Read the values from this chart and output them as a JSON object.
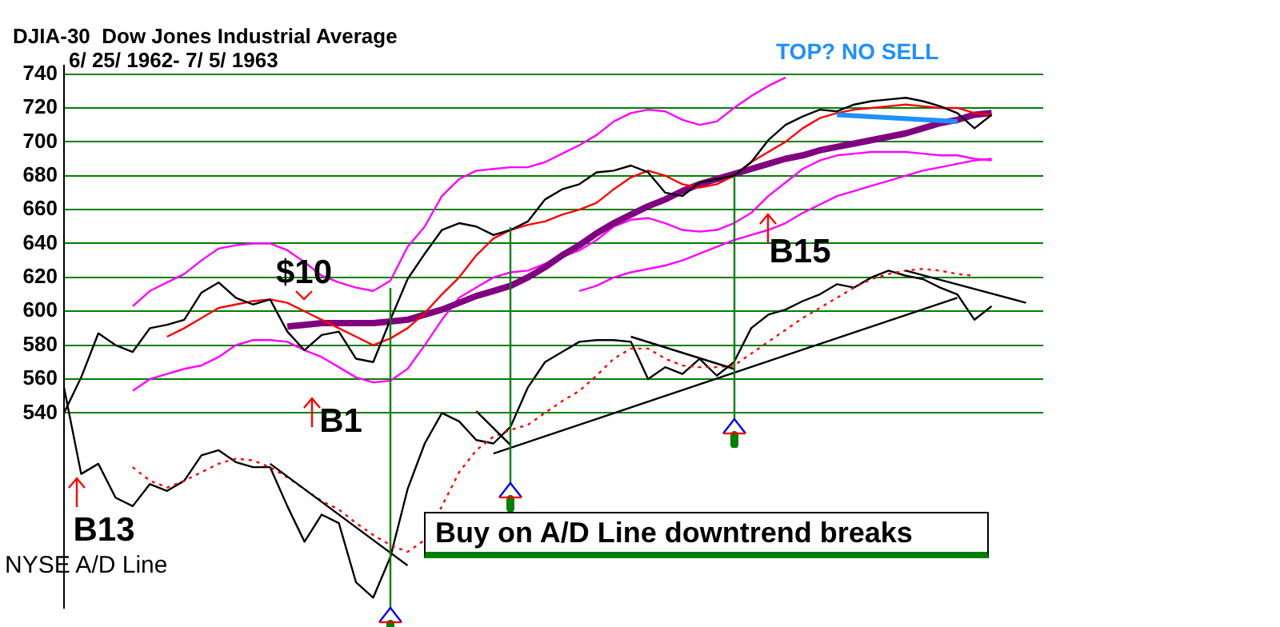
{
  "chart_data": {
    "type": "line",
    "title": "DJIA-30  Dow Jones Industrial Average",
    "subtitle": "6/ 25/ 1962- 7/ 5/ 1963",
    "categories": [
      null,
      null,
      null,
      null,
      null,
      null,
      null,
      null,
      null,
      null,
      null,
      null,
      null,
      null,
      null,
      null,
      null,
      null,
      null,
      null,
      null,
      null,
      null,
      null,
      null,
      null,
      null,
      null,
      null,
      null,
      null,
      null,
      null,
      null,
      null,
      null,
      null,
      null,
      null,
      null,
      null,
      null,
      null,
      null,
      null,
      null,
      null,
      null,
      null,
      null,
      null,
      null,
      null,
      null,
      null,
      null,
      null,
      null
    ],
    "series": [
      {
        "color": "#ff00ff",
        "values": [
          null,
          null,
          null,
          null,
          603,
          612,
          617,
          622,
          630,
          637,
          639,
          640,
          640,
          636,
          629,
          621,
          617,
          614,
          612,
          618,
          638,
          650,
          668,
          678,
          683,
          684,
          685,
          685,
          688,
          693,
          698,
          704,
          712,
          717,
          719,
          718,
          713,
          710,
          712,
          720,
          727,
          733,
          738,
          null,
          null,
          null,
          null,
          null,
          null,
          null,
          null,
          null,
          null,
          null,
          null,
          null,
          null,
          null
        ]
      },
      {
        "color": "#ff00ff",
        "values": [
          null,
          null,
          null,
          null,
          553,
          560,
          563,
          566,
          568,
          573,
          580,
          583,
          583,
          582,
          577,
          573,
          567,
          561,
          558,
          559,
          566,
          580,
          595,
          608,
          614,
          620,
          623,
          624,
          628,
          632,
          636,
          642,
          650,
          654,
          655,
          652,
          648,
          647,
          648,
          652,
          658,
          668,
          676,
          684,
          689,
          692,
          693,
          694,
          694,
          694,
          693,
          692,
          692,
          690,
          689,
          null,
          null,
          null
        ]
      },
      {
        "color": "#ff00ff",
        "values": [
          null,
          null,
          null,
          null,
          null,
          null,
          null,
          null,
          null,
          null,
          null,
          null,
          null,
          null,
          null,
          null,
          null,
          null,
          null,
          null,
          null,
          null,
          null,
          null,
          null,
          null,
          null,
          null,
          null,
          null,
          612,
          615,
          620,
          623,
          625,
          627,
          630,
          634,
          638,
          642,
          645,
          648,
          652,
          658,
          663,
          668,
          671,
          674,
          677,
          680,
          683,
          685,
          687,
          689,
          690,
          null,
          null,
          null
        ]
      },
      {
        "color": "#800080",
        "values": [
          null,
          null,
          null,
          null,
          null,
          null,
          null,
          null,
          null,
          null,
          null,
          null,
          null,
          591,
          592,
          593,
          593,
          593,
          593,
          594,
          595,
          598,
          601,
          605,
          609,
          612,
          615,
          620,
          626,
          633,
          639,
          646,
          652,
          657,
          662,
          666,
          671,
          675,
          678,
          681,
          684,
          687,
          690,
          692,
          695,
          697,
          699,
          701,
          703,
          705,
          708,
          711,
          713,
          716,
          717,
          null,
          null,
          null
        ]
      },
      {
        "color": "#ff0000",
        "values": [
          null,
          null,
          null,
          null,
          null,
          null,
          585,
          590,
          596,
          602,
          604,
          606,
          607,
          605,
          600,
          595,
          590,
          585,
          580,
          584,
          590,
          599,
          610,
          620,
          633,
          643,
          648,
          651,
          653,
          657,
          660,
          664,
          672,
          679,
          683,
          680,
          675,
          673,
          675,
          680,
          688,
          694,
          700,
          708,
          714,
          717,
          719,
          720,
          721,
          722,
          721,
          720,
          720,
          717,
          716,
          null,
          null,
          null
        ]
      },
      {
        "color": "#000000",
        "values": [
          540,
          561,
          587,
          580,
          576,
          590,
          592,
          595,
          611,
          617,
          608,
          604,
          607,
          588,
          577,
          586,
          588,
          572,
          570,
          595,
          619,
          634,
          648,
          652,
          650,
          645,
          648,
          653,
          666,
          672,
          675,
          682,
          683,
          686,
          682,
          670,
          668,
          676,
          678,
          680,
          688,
          701,
          710,
          715,
          719,
          718,
          722,
          724,
          725,
          726,
          724,
          721,
          717,
          708,
          716,
          null,
          null,
          null
        ]
      },
      {
        "name": "NYSE A/D Line",
        "color": "#000000",
        "values": [
          555,
          504,
          510,
          490,
          485,
          498,
          494,
          500,
          515,
          518,
          511,
          508,
          508,
          485,
          464,
          480,
          475,
          440,
          431,
          455,
          495,
          522,
          540,
          535,
          524,
          522,
          532,
          555,
          570,
          576,
          582,
          583,
          583,
          582,
          560,
          567,
          563,
          572,
          562,
          570,
          590,
          598,
          601,
          606,
          610,
          616,
          614,
          620,
          624,
          621,
          619,
          614,
          610,
          595,
          603,
          null,
          null,
          null
        ]
      },
      {
        "color": "#ff0000",
        "line_style": "dotted",
        "values": [
          null,
          null,
          null,
          null,
          508,
          500,
          496,
          500,
          505,
          510,
          513,
          512,
          508,
          502,
          495,
          488,
          483,
          475,
          468,
          462,
          458,
          465,
          485,
          505,
          518,
          526,
          530,
          533,
          540,
          547,
          553,
          562,
          572,
          578,
          578,
          572,
          568,
          567,
          567,
          568,
          575,
          582,
          589,
          596,
          602,
          608,
          614,
          619,
          622,
          624,
          625,
          624,
          622,
          621,
          null,
          null,
          null,
          null
        ]
      },
      {
        "color": "#000000",
        "values": [
          null,
          null,
          null,
          null,
          null,
          null,
          null,
          null,
          null,
          null,
          null,
          null,
          510,
          null,
          null,
          null,
          null,
          null,
          null,
          null,
          450,
          null,
          null,
          null,
          null,
          null,
          null,
          null,
          null,
          null,
          null,
          null,
          null,
          null,
          null,
          null,
          null,
          null,
          null,
          null,
          null,
          null,
          null,
          null,
          null,
          null,
          null,
          null,
          null,
          null,
          null,
          null,
          null,
          null,
          null,
          null,
          null,
          null
        ]
      },
      {
        "color": "#000000",
        "values": [
          null,
          null,
          null,
          null,
          null,
          null,
          null,
          null,
          null,
          null,
          null,
          null,
          null,
          null,
          null,
          null,
          null,
          null,
          null,
          null,
          null,
          null,
          null,
          null,
          541,
          null,
          521,
          null,
          null,
          null,
          null,
          null,
          null,
          null,
          null,
          null,
          null,
          null,
          null,
          null,
          null,
          null,
          null,
          null,
          null,
          null,
          null,
          null,
          null,
          null,
          null,
          null,
          null,
          null,
          null,
          null,
          null,
          null
        ]
      },
      {
        "color": "#000000",
        "values": [
          null,
          null,
          null,
          null,
          null,
          null,
          null,
          null,
          null,
          null,
          null,
          null,
          null,
          null,
          null,
          null,
          null,
          null,
          null,
          null,
          null,
          null,
          null,
          null,
          null,
          516,
          null,
          null,
          null,
          null,
          null,
          null,
          null,
          null,
          null,
          null,
          null,
          null,
          null,
          null,
          null,
          null,
          null,
          null,
          null,
          null,
          null,
          null,
          null,
          null,
          null,
          null,
          608,
          null,
          null,
          null,
          null,
          null
        ]
      },
      {
        "color": "#000000",
        "values": [
          null,
          null,
          null,
          null,
          null,
          null,
          null,
          null,
          null,
          null,
          null,
          null,
          null,
          null,
          null,
          null,
          null,
          null,
          null,
          null,
          null,
          null,
          null,
          null,
          null,
          null,
          null,
          null,
          null,
          null,
          null,
          null,
          null,
          585,
          null,
          null,
          null,
          null,
          null,
          566,
          null,
          null,
          null,
          null,
          null,
          null,
          null,
          null,
          null,
          null,
          null,
          null,
          null,
          null,
          null,
          null,
          null,
          null
        ]
      },
      {
        "color": "#000000",
        "values": [
          null,
          null,
          null,
          null,
          null,
          null,
          null,
          null,
          null,
          null,
          null,
          null,
          null,
          null,
          null,
          null,
          null,
          null,
          null,
          null,
          null,
          null,
          null,
          null,
          null,
          null,
          null,
          null,
          null,
          null,
          null,
          null,
          null,
          null,
          null,
          null,
          null,
          null,
          null,
          null,
          null,
          null,
          null,
          null,
          null,
          null,
          null,
          null,
          null,
          624,
          null,
          null,
          null,
          null,
          null,
          null,
          605,
          null
        ]
      },
      {
        "color": "#1e90ff",
        "values": [
          null,
          null,
          null,
          null,
          null,
          null,
          null,
          null,
          null,
          null,
          null,
          null,
          null,
          null,
          null,
          null,
          null,
          null,
          null,
          null,
          null,
          null,
          null,
          null,
          null,
          null,
          null,
          null,
          null,
          null,
          null,
          null,
          null,
          null,
          null,
          null,
          null,
          null,
          null,
          null,
          null,
          null,
          null,
          null,
          null,
          716,
          null,
          null,
          null,
          null,
          null,
          null,
          712,
          null,
          null,
          null,
          null,
          null
        ]
      }
    ],
    "ylim": [
      425,
      745
    ],
    "yticks": [
      540,
      560,
      580,
      600,
      620,
      640,
      660,
      680,
      700,
      720,
      740
    ],
    "tick_labels": "y",
    "grid": "y",
    "legend": false,
    "marker": "none",
    "annotations": [
      "TOP? NO SELL",
      "Buy on A/D Line downtrend breaks",
      "B13",
      "$10",
      "B1",
      "B15"
    ]
  }
}
